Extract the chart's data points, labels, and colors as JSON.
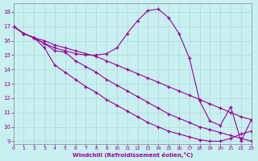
{
  "background_color": "#c8f0f0",
  "line_color": "#990099",
  "grid_color": "#b0d8d8",
  "xlabel": "Windchill (Refroidissement éolien,°C)",
  "xlabel_color": "#990099",
  "xlim": [
    0,
    23
  ],
  "ylim": [
    8.8,
    18.6
  ],
  "yticks": [
    9,
    10,
    11,
    12,
    13,
    14,
    15,
    16,
    17,
    18
  ],
  "xticks": [
    0,
    1,
    2,
    3,
    4,
    5,
    6,
    7,
    8,
    9,
    10,
    11,
    12,
    13,
    14,
    15,
    16,
    17,
    18,
    19,
    20,
    21,
    22,
    23
  ],
  "lines": [
    {
      "x": [
        0,
        1,
        2,
        3,
        4,
        5,
        6,
        7,
        8,
        9,
        10,
        11,
        12,
        13,
        14,
        15,
        16,
        17,
        18,
        19,
        20,
        21,
        22,
        23
      ],
      "y": [
        17.0,
        16.5,
        16.2,
        15.5,
        14.3,
        13.8,
        13.3,
        12.8,
        12.4,
        11.9,
        11.5,
        11.1,
        10.7,
        10.3,
        10.0,
        9.7,
        9.5,
        9.3,
        9.1,
        9.0,
        9.0,
        9.2,
        9.5,
        9.7
      ]
    },
    {
      "x": [
        0,
        1,
        2,
        3,
        4,
        5,
        6,
        7,
        8,
        9,
        10,
        11,
        12,
        13,
        14,
        15,
        16,
        17,
        18,
        19,
        20,
        21,
        22,
        23
      ],
      "y": [
        17.0,
        16.5,
        16.2,
        15.8,
        15.3,
        15.2,
        14.6,
        14.2,
        13.8,
        13.3,
        12.9,
        12.5,
        12.1,
        11.7,
        11.3,
        10.9,
        10.6,
        10.3,
        10.0,
        9.8,
        9.6,
        9.4,
        9.2,
        9.0
      ]
    },
    {
      "x": [
        0,
        1,
        2,
        3,
        4,
        5,
        6,
        7,
        8,
        9,
        10,
        11,
        12,
        13,
        14,
        15,
        16,
        17,
        18,
        19,
        20,
        21,
        22,
        23
      ],
      "y": [
        17.0,
        16.5,
        16.2,
        16.0,
        15.7,
        15.5,
        15.3,
        15.1,
        14.9,
        14.6,
        14.3,
        14.0,
        13.7,
        13.4,
        13.1,
        12.8,
        12.5,
        12.2,
        11.9,
        11.6,
        11.3,
        11.0,
        10.7,
        10.5
      ]
    },
    {
      "x": [
        0,
        1,
        2,
        3,
        4,
        5,
        6,
        7,
        8,
        9,
        10,
        11,
        12,
        13,
        14,
        15,
        16,
        17,
        18,
        19,
        20,
        21,
        22,
        23
      ],
      "y": [
        17.0,
        16.5,
        16.2,
        15.8,
        15.5,
        15.3,
        15.1,
        15.0,
        15.0,
        15.1,
        15.5,
        16.5,
        17.4,
        18.1,
        18.2,
        17.6,
        16.5,
        14.8,
        11.8,
        10.4,
        10.1,
        11.4,
        9.0,
        10.5
      ]
    }
  ]
}
